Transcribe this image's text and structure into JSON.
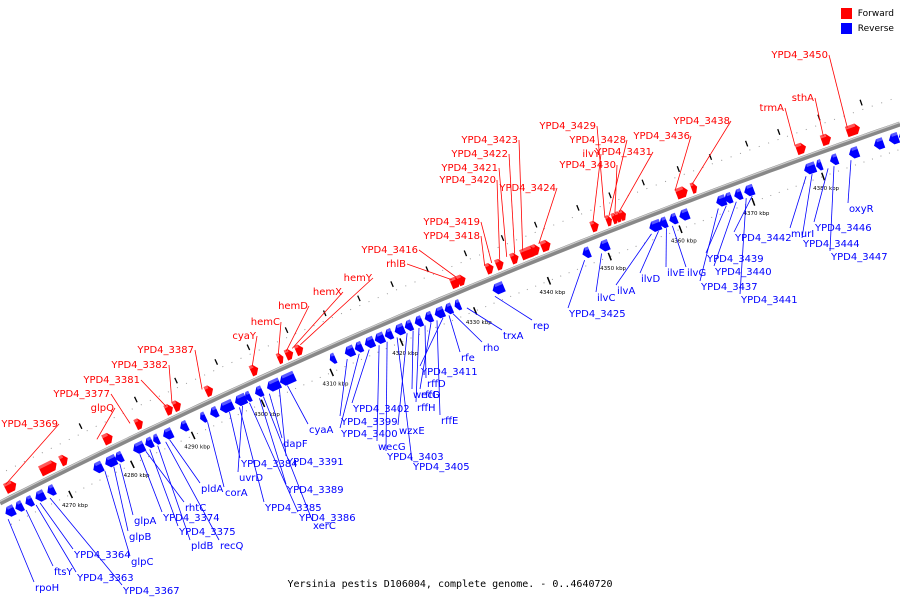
{
  "caption": "Yersinia pestis D106004, complete genome. - 0..4640720",
  "legend": {
    "forward_label": "Forward",
    "forward_color": "#ff0000",
    "reverse_label": "Reverse",
    "reverse_color": "#0000ff"
  },
  "colors": {
    "forward": "#ff0000",
    "reverse": "#0000ff",
    "backbone": "#888888"
  },
  "ticks": [
    "4270 kbp",
    "4280 kbp",
    "4290 kbp",
    "4300 kbp",
    "4310 kbp",
    "4320 kbp",
    "4330 kbp",
    "4340 kbp",
    "4350 kbp",
    "4360 kbp",
    "4370 kbp",
    "4380 kbp"
  ],
  "forward_genes": [
    "YPD4_3369",
    "glpQ",
    "YPD4_3377",
    "YPD4_3381",
    "YPD4_3382",
    "YPD4_3387",
    "cyaY",
    "hemC",
    "hemD",
    "hemX",
    "hemY",
    "rhlB",
    "YPD4_3416",
    "YPD4_3418",
    "YPD4_3419",
    "YPD4_3420",
    "YPD4_3421",
    "YPD4_3422",
    "YPD4_3423",
    "YPD4_3424",
    "ilvY",
    "YPD4_3429",
    "YPD4_3428",
    "YPD4_3430",
    "YPD4_3431",
    "YPD4_3436",
    "YPD4_3438",
    "trmA",
    "sthA",
    "YPD4_3450"
  ],
  "reverse_genes": [
    "rpoH",
    "ftsY",
    "YPD4_3363",
    "YPD4_3364",
    "YPD4_3367",
    "glpC",
    "glpB",
    "glpA",
    "YPD4_3374",
    "rhtC",
    "YPD4_3375",
    "pldB",
    "recQ",
    "pldA",
    "corA",
    "YPD4_3384",
    "YPD4_3385",
    "uvrD",
    "YPD4_3386",
    "xerC",
    "YPD4_3389",
    "dapF",
    "YPD4_3391",
    "cyaA",
    "YPD4_3399",
    "YPD4_3400",
    "YPD4_3402",
    "wecG",
    "YPD4_3403",
    "YPD4_3405",
    "wzxE",
    "wecD",
    "rffH",
    "rffD",
    "rffG",
    "rffE",
    "YPD4_3411",
    "rfe",
    "rho",
    "trxA",
    "rep",
    "YPD4_3425",
    "ilvC",
    "ilvA",
    "ilvD",
    "ilvE",
    "ilvG",
    "YPD4_3437",
    "YPD4_3439",
    "YPD4_3440",
    "YPD4_3441",
    "YPD4_3442",
    "murI",
    "YPD4_3444",
    "YPD4_3446",
    "YPD4_3447",
    "oxyR"
  ]
}
